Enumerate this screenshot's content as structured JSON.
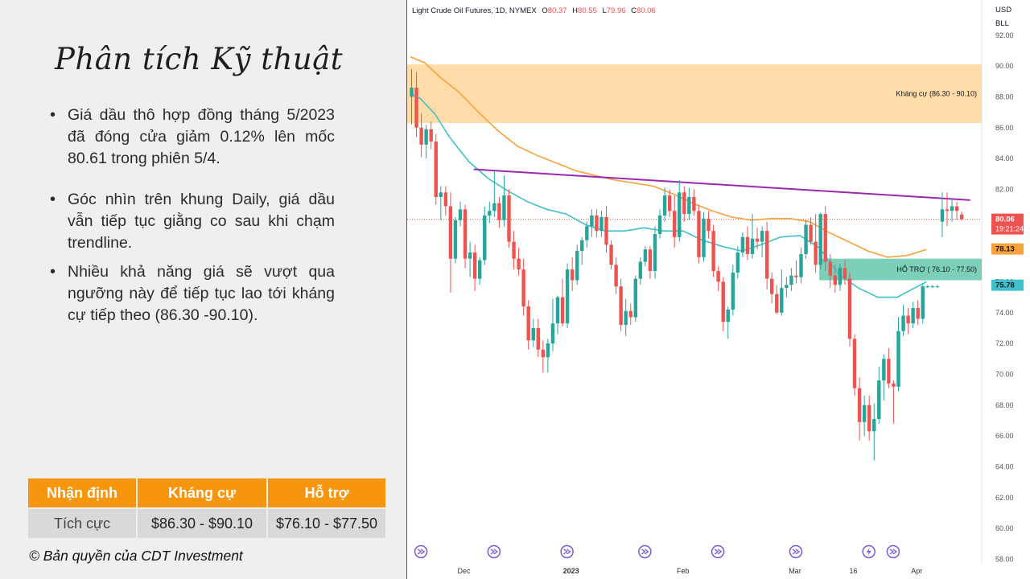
{
  "slide": {
    "title": "Phân tích Kỹ thuật",
    "bullets": [
      "Giá dầu thô hợp đồng tháng 5/2023 đã đóng cửa giảm 0.12% lên mốc 80.61 trong phiên 5/4.",
      "Góc nhìn trên khung Daily, giá dầu vẫn tiếp tục giằng co sau khi chạm trendline.",
      "Nhiều khả năng giá sẽ vượt qua ngưỡng này để tiếp tục lao tới kháng cự tiếp theo (86.30 -90.10)."
    ],
    "copyright": "© Bản quyền của CDT Investment"
  },
  "summary_table": {
    "headers": [
      "Nhận định",
      "Kháng cự",
      "Hỗ trợ"
    ],
    "row": [
      "Tích cực",
      "$86.30 - $90.10",
      "$76.10 - $77.50"
    ]
  },
  "colors": {
    "accent_orange": "#f7960d",
    "bull_candle": "#26a69a",
    "bear_candle": "#ef5350",
    "ma_orange": "#f7a23b",
    "ma_teal": "#3fc1c9",
    "trendline": "#9c27b0",
    "resistance_zone": "#ffdca8",
    "support_zone": "#7ccfb8"
  },
  "chart_data": {
    "type": "candlestick",
    "header": {
      "symbol": "Light Crude Oil Futures, 1D, NYMEX",
      "o_label": "O",
      "o_value": "80.37",
      "h_label": "H",
      "h_value": "80.55",
      "l_label": "L",
      "l_value": "79.96",
      "c_label": "C",
      "c_value": "80.06"
    },
    "unit_labels": [
      "USD",
      "BLL"
    ],
    "ylim": [
      57.5,
      93.5
    ],
    "y_ticks": [
      "58.00",
      "60.00",
      "62.00",
      "64.00",
      "66.00",
      "68.00",
      "70.00",
      "72.00",
      "74.00",
      "76.00",
      "78.00",
      "80.00",
      "82.00",
      "84.00",
      "86.00",
      "88.00",
      "90.00",
      "92.00"
    ],
    "x_labels": [
      "Dec",
      "2023",
      "Feb",
      "Mar",
      "16",
      "Apr"
    ],
    "x_label_slots": [
      11,
      33,
      56,
      79,
      91,
      104
    ],
    "zones": [
      {
        "name": "resistance",
        "label": "Kháng cự (86.30 - 90.10)",
        "low": 86.3,
        "high": 90.1
      },
      {
        "name": "support",
        "label": "HỖ TRỢ ( 76.10 - 77.50)",
        "low": 76.1,
        "high": 77.5
      }
    ],
    "trendline": {
      "start": [
        13,
        83.3
      ],
      "end": [
        115,
        81.3
      ]
    },
    "price_tags": [
      {
        "name": "last-price",
        "value": "80.06",
        "sub": "19:21:24",
        "price": 80.06,
        "color": "#ef5350"
      },
      {
        "name": "ma-orange",
        "value": "78.13",
        "price": 78.13,
        "color": "#f7a23b"
      },
      {
        "name": "ma-teal",
        "value": "75.78",
        "price": 75.78,
        "color": "#3fc1c9"
      }
    ],
    "ma_orange": [
      [
        0,
        90.6
      ],
      [
        3,
        90.2
      ],
      [
        6,
        89.3
      ],
      [
        10,
        88.3
      ],
      [
        14,
        87.0
      ],
      [
        18,
        85.8
      ],
      [
        22,
        84.8
      ],
      [
        26,
        84.2
      ],
      [
        30,
        83.7
      ],
      [
        34,
        83.2
      ],
      [
        38,
        82.9
      ],
      [
        42,
        82.6
      ],
      [
        46,
        82.4
      ],
      [
        50,
        82.2
      ],
      [
        54,
        81.7
      ],
      [
        58,
        81.1
      ],
      [
        62,
        80.6
      ],
      [
        66,
        80.2
      ],
      [
        70,
        80.0
      ],
      [
        74,
        80.1
      ],
      [
        78,
        80.1
      ],
      [
        82,
        79.9
      ],
      [
        86,
        79.2
      ],
      [
        90,
        78.6
      ],
      [
        94,
        78.0
      ],
      [
        98,
        77.6
      ],
      [
        102,
        77.7
      ],
      [
        106,
        78.1
      ]
    ],
    "ma_teal": [
      [
        0,
        88.2
      ],
      [
        2,
        87.9
      ],
      [
        5,
        86.9
      ],
      [
        8,
        85.4
      ],
      [
        12,
        83.8
      ],
      [
        16,
        82.7
      ],
      [
        20,
        81.9
      ],
      [
        24,
        81.2
      ],
      [
        28,
        80.7
      ],
      [
        32,
        80.4
      ],
      [
        36,
        79.7
      ],
      [
        40,
        79.3
      ],
      [
        44,
        79.3
      ],
      [
        48,
        79.5
      ],
      [
        52,
        79.3
      ],
      [
        56,
        79.3
      ],
      [
        60,
        78.7
      ],
      [
        64,
        78.3
      ],
      [
        68,
        78.0
      ],
      [
        72,
        78.4
      ],
      [
        76,
        78.9
      ],
      [
        80,
        79.0
      ],
      [
        84,
        78.2
      ],
      [
        88,
        76.5
      ],
      [
        92,
        75.6
      ],
      [
        96,
        75.0
      ],
      [
        100,
        75.0
      ],
      [
        103,
        75.5
      ],
      [
        106,
        76.0
      ]
    ],
    "candles": [
      {
        "o": 88.0,
        "h": 89.8,
        "l": 86.2,
        "c": 88.6
      },
      {
        "o": 88.6,
        "h": 89.6,
        "l": 85.4,
        "c": 86.0
      },
      {
        "o": 86.0,
        "h": 86.9,
        "l": 84.1,
        "c": 84.9
      },
      {
        "o": 84.9,
        "h": 86.2,
        "l": 84.0,
        "c": 85.9
      },
      {
        "o": 85.9,
        "h": 86.4,
        "l": 84.6,
        "c": 85.1
      },
      {
        "o": 85.1,
        "h": 85.6,
        "l": 81.0,
        "c": 81.5
      },
      {
        "o": 81.5,
        "h": 82.2,
        "l": 80.0,
        "c": 81.8
      },
      {
        "o": 81.8,
        "h": 82.2,
        "l": 80.3,
        "c": 80.9
      },
      {
        "o": 80.9,
        "h": 81.8,
        "l": 75.3,
        "c": 77.5
      },
      {
        "o": 77.5,
        "h": 80.2,
        "l": 77.2,
        "c": 80.0
      },
      {
        "o": 80.0,
        "h": 81.2,
        "l": 79.6,
        "c": 80.7
      },
      {
        "o": 80.7,
        "h": 81.0,
        "l": 76.9,
        "c": 77.5
      },
      {
        "o": 77.5,
        "h": 78.6,
        "l": 76.3,
        "c": 77.9
      },
      {
        "o": 77.9,
        "h": 78.4,
        "l": 75.4,
        "c": 76.2
      },
      {
        "o": 76.2,
        "h": 77.6,
        "l": 75.8,
        "c": 77.4
      },
      {
        "o": 77.4,
        "h": 80.9,
        "l": 77.1,
        "c": 80.3
      },
      {
        "o": 80.3,
        "h": 81.2,
        "l": 79.8,
        "c": 80.6
      },
      {
        "o": 80.6,
        "h": 83.2,
        "l": 80.2,
        "c": 81.1
      },
      {
        "o": 81.1,
        "h": 81.5,
        "l": 79.5,
        "c": 80.0
      },
      {
        "o": 80.0,
        "h": 82.9,
        "l": 79.6,
        "c": 81.6
      },
      {
        "o": 81.6,
        "h": 82.0,
        "l": 78.2,
        "c": 78.6
      },
      {
        "o": 78.6,
        "h": 79.3,
        "l": 76.8,
        "c": 77.5
      },
      {
        "o": 77.5,
        "h": 78.2,
        "l": 76.4,
        "c": 76.8
      },
      {
        "o": 76.8,
        "h": 77.5,
        "l": 73.8,
        "c": 74.4
      },
      {
        "o": 74.4,
        "h": 74.8,
        "l": 71.6,
        "c": 72.2
      },
      {
        "o": 72.2,
        "h": 73.6,
        "l": 71.8,
        "c": 73.0
      },
      {
        "o": 73.0,
        "h": 73.6,
        "l": 71.1,
        "c": 71.6
      },
      {
        "o": 71.6,
        "h": 72.2,
        "l": 70.1,
        "c": 71.1
      },
      {
        "o": 71.1,
        "h": 72.3,
        "l": 70.1,
        "c": 72.0
      },
      {
        "o": 72.0,
        "h": 74.9,
        "l": 71.5,
        "c": 73.3
      },
      {
        "o": 73.3,
        "h": 75.1,
        "l": 72.6,
        "c": 75.0
      },
      {
        "o": 75.0,
        "h": 76.2,
        "l": 73.1,
        "c": 73.3
      },
      {
        "o": 73.3,
        "h": 77.2,
        "l": 73.0,
        "c": 76.8
      },
      {
        "o": 76.8,
        "h": 77.6,
        "l": 75.4,
        "c": 76.1
      },
      {
        "o": 76.1,
        "h": 78.4,
        "l": 75.8,
        "c": 78.0
      },
      {
        "o": 78.0,
        "h": 78.9,
        "l": 77.1,
        "c": 78.7
      },
      {
        "o": 78.7,
        "h": 79.9,
        "l": 78.2,
        "c": 79.6
      },
      {
        "o": 79.6,
        "h": 80.7,
        "l": 78.9,
        "c": 80.3
      },
      {
        "o": 80.3,
        "h": 80.7,
        "l": 78.9,
        "c": 79.3
      },
      {
        "o": 79.3,
        "h": 80.6,
        "l": 78.9,
        "c": 80.2
      },
      {
        "o": 80.2,
        "h": 80.9,
        "l": 77.9,
        "c": 78.4
      },
      {
        "o": 78.4,
        "h": 78.7,
        "l": 76.8,
        "c": 77.1
      },
      {
        "o": 77.1,
        "h": 77.6,
        "l": 75.2,
        "c": 75.7
      },
      {
        "o": 75.7,
        "h": 76.2,
        "l": 72.8,
        "c": 73.2
      },
      {
        "o": 73.2,
        "h": 74.9,
        "l": 72.5,
        "c": 74.1
      },
      {
        "o": 74.1,
        "h": 74.6,
        "l": 73.2,
        "c": 73.7
      },
      {
        "o": 73.7,
        "h": 76.4,
        "l": 73.4,
        "c": 76.2
      },
      {
        "o": 76.2,
        "h": 77.6,
        "l": 75.8,
        "c": 77.3
      },
      {
        "o": 77.3,
        "h": 78.3,
        "l": 77.0,
        "c": 78.1
      },
      {
        "o": 78.1,
        "h": 78.3,
        "l": 76.2,
        "c": 76.7
      },
      {
        "o": 76.7,
        "h": 79.6,
        "l": 76.2,
        "c": 79.1
      },
      {
        "o": 79.1,
        "h": 80.7,
        "l": 78.8,
        "c": 80.3
      },
      {
        "o": 80.3,
        "h": 82.1,
        "l": 79.9,
        "c": 81.6
      },
      {
        "o": 81.6,
        "h": 82.0,
        "l": 80.2,
        "c": 80.6
      },
      {
        "o": 80.6,
        "h": 81.6,
        "l": 78.2,
        "c": 78.9
      },
      {
        "o": 78.9,
        "h": 82.6,
        "l": 78.6,
        "c": 81.8
      },
      {
        "o": 81.8,
        "h": 82.2,
        "l": 79.9,
        "c": 80.4
      },
      {
        "o": 80.4,
        "h": 82.1,
        "l": 80.0,
        "c": 81.5
      },
      {
        "o": 81.5,
        "h": 82.0,
        "l": 80.3,
        "c": 80.6
      },
      {
        "o": 80.6,
        "h": 81.0,
        "l": 77.2,
        "c": 77.6
      },
      {
        "o": 77.6,
        "h": 80.5,
        "l": 77.3,
        "c": 80.1
      },
      {
        "o": 80.1,
        "h": 80.6,
        "l": 78.8,
        "c": 79.3
      },
      {
        "o": 79.3,
        "h": 79.7,
        "l": 76.3,
        "c": 76.7
      },
      {
        "o": 76.7,
        "h": 77.0,
        "l": 75.4,
        "c": 76.0
      },
      {
        "o": 76.0,
        "h": 76.3,
        "l": 72.8,
        "c": 73.4
      },
      {
        "o": 73.4,
        "h": 74.4,
        "l": 72.3,
        "c": 74.2
      },
      {
        "o": 74.2,
        "h": 77.1,
        "l": 73.8,
        "c": 76.6
      },
      {
        "o": 76.6,
        "h": 78.3,
        "l": 76.2,
        "c": 77.9
      },
      {
        "o": 77.9,
        "h": 79.2,
        "l": 77.6,
        "c": 78.9
      },
      {
        "o": 78.9,
        "h": 79.6,
        "l": 77.4,
        "c": 77.8
      },
      {
        "o": 77.8,
        "h": 80.4,
        "l": 77.5,
        "c": 78.8
      },
      {
        "o": 78.8,
        "h": 79.5,
        "l": 78.1,
        "c": 78.6
      },
      {
        "o": 78.6,
        "h": 79.6,
        "l": 77.6,
        "c": 79.3
      },
      {
        "o": 79.3,
        "h": 79.9,
        "l": 75.5,
        "c": 76.2
      },
      {
        "o": 76.2,
        "h": 76.6,
        "l": 74.6,
        "c": 75.2
      },
      {
        "o": 75.2,
        "h": 75.8,
        "l": 73.9,
        "c": 74.0
      },
      {
        "o": 74.0,
        "h": 76.8,
        "l": 73.8,
        "c": 75.6
      },
      {
        "o": 75.6,
        "h": 76.3,
        "l": 75.0,
        "c": 75.8
      },
      {
        "o": 75.8,
        "h": 76.9,
        "l": 75.4,
        "c": 76.4
      },
      {
        "o": 76.4,
        "h": 77.4,
        "l": 75.9,
        "c": 76.3
      },
      {
        "o": 76.3,
        "h": 78.2,
        "l": 75.9,
        "c": 77.8
      },
      {
        "o": 77.8,
        "h": 80.0,
        "l": 77.5,
        "c": 79.7
      },
      {
        "o": 79.7,
        "h": 80.2,
        "l": 78.4,
        "c": 78.6
      },
      {
        "o": 78.6,
        "h": 80.4,
        "l": 76.6,
        "c": 77.1
      },
      {
        "o": 77.1,
        "h": 80.5,
        "l": 76.8,
        "c": 80.4
      },
      {
        "o": 80.4,
        "h": 80.9,
        "l": 76.7,
        "c": 77.3
      },
      {
        "o": 77.3,
        "h": 77.8,
        "l": 75.6,
        "c": 76.4
      },
      {
        "o": 76.4,
        "h": 77.1,
        "l": 75.3,
        "c": 75.8
      },
      {
        "o": 75.8,
        "h": 77.2,
        "l": 75.4,
        "c": 76.9
      },
      {
        "o": 76.9,
        "h": 77.4,
        "l": 75.8,
        "c": 76.2
      },
      {
        "o": 76.2,
        "h": 76.6,
        "l": 71.8,
        "c": 72.3
      },
      {
        "o": 72.3,
        "h": 72.6,
        "l": 68.6,
        "c": 69.1
      },
      {
        "o": 69.1,
        "h": 69.8,
        "l": 65.7,
        "c": 66.9
      },
      {
        "o": 66.9,
        "h": 68.6,
        "l": 66.0,
        "c": 68.0
      },
      {
        "o": 68.0,
        "h": 68.6,
        "l": 65.7,
        "c": 66.3
      },
      {
        "o": 66.3,
        "h": 68.1,
        "l": 64.4,
        "c": 67.1
      },
      {
        "o": 67.1,
        "h": 70.5,
        "l": 66.8,
        "c": 69.6
      },
      {
        "o": 69.6,
        "h": 71.3,
        "l": 68.3,
        "c": 71.0
      },
      {
        "o": 71.0,
        "h": 71.7,
        "l": 69.1,
        "c": 69.4
      },
      {
        "o": 69.4,
        "h": 69.6,
        "l": 66.8,
        "c": 69.2
      },
      {
        "o": 69.2,
        "h": 73.7,
        "l": 68.9,
        "c": 72.8
      },
      {
        "o": 72.8,
        "h": 74.5,
        "l": 72.5,
        "c": 73.8
      },
      {
        "o": 73.8,
        "h": 74.3,
        "l": 72.6,
        "c": 73.3
      },
      {
        "o": 73.3,
        "h": 74.7,
        "l": 73.0,
        "c": 74.3
      },
      {
        "o": 74.3,
        "h": 74.8,
        "l": 73.2,
        "c": 73.6
      },
      {
        "o": 73.6,
        "h": 75.9,
        "l": 73.3,
        "c": 75.7
      },
      {
        "o": 75.7,
        "h": 75.8,
        "l": 75.6,
        "c": 75.7
      },
      {
        "o": 75.7,
        "h": 75.8,
        "l": 75.6,
        "c": 75.7
      },
      {
        "o": 75.7,
        "h": 75.8,
        "l": 75.6,
        "c": 75.7
      },
      {
        "o": 79.9,
        "h": 81.8,
        "l": 78.9,
        "c": 80.7
      },
      {
        "o": 80.7,
        "h": 81.8,
        "l": 79.6,
        "c": 80.6
      },
      {
        "o": 80.6,
        "h": 81.4,
        "l": 79.9,
        "c": 80.9
      },
      {
        "o": 80.9,
        "h": 81.2,
        "l": 80.0,
        "c": 80.6
      },
      {
        "o": 80.37,
        "h": 80.55,
        "l": 79.96,
        "c": 80.06
      }
    ],
    "event_markers": [
      {
        "slot": 2,
        "icon": "forward-icon"
      },
      {
        "slot": 17,
        "icon": "forward-icon"
      },
      {
        "slot": 32,
        "icon": "forward-icon"
      },
      {
        "slot": 48,
        "icon": "forward-icon"
      },
      {
        "slot": 63,
        "icon": "forward-icon"
      },
      {
        "slot": 79,
        "icon": "forward-icon"
      },
      {
        "slot": 94,
        "icon": "lightning-icon"
      },
      {
        "slot": 99,
        "icon": "forward-icon"
      }
    ]
  }
}
